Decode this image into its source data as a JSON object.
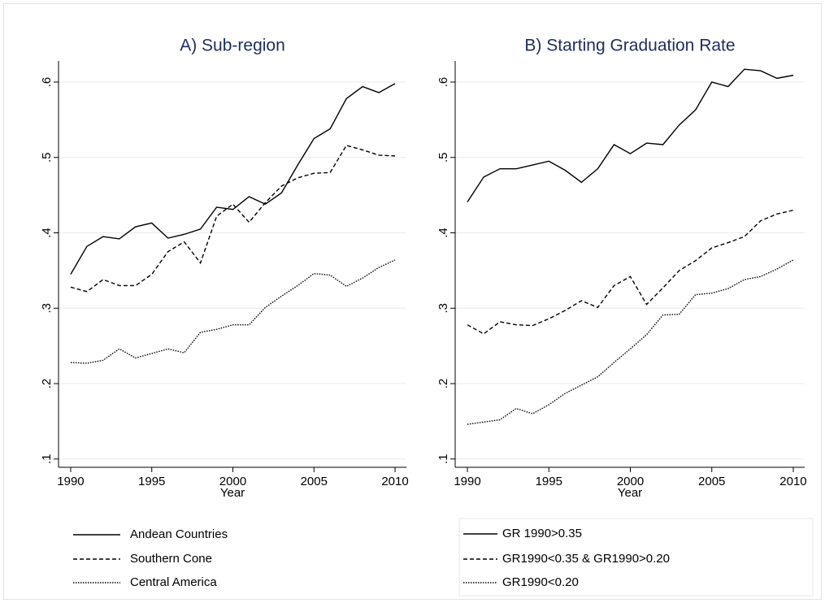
{
  "chart_data": [
    {
      "type": "line",
      "title": "A) Sub-region",
      "x_label": "Year",
      "x": [
        1990,
        1991,
        1992,
        1993,
        1994,
        1995,
        1996,
        1997,
        1998,
        1999,
        2000,
        2001,
        2002,
        2003,
        2004,
        2005,
        2006,
        2007,
        2008,
        2009,
        2010
      ],
      "series": [
        {
          "name": "Andean Countries",
          "color": "#000000",
          "line_style": "solid",
          "values": [
            0.345,
            0.382,
            0.395,
            0.392,
            0.408,
            0.413,
            0.393,
            0.398,
            0.405,
            0.434,
            0.431,
            0.448,
            0.438,
            0.453,
            0.49,
            0.525,
            0.538,
            0.578,
            0.594,
            0.586,
            0.598
          ]
        },
        {
          "name": "Southern Cone",
          "color": "#000000",
          "line_style": "dashed",
          "values": [
            0.328,
            0.322,
            0.338,
            0.33,
            0.33,
            0.345,
            0.375,
            0.388,
            0.36,
            0.422,
            0.438,
            0.414,
            0.44,
            0.462,
            0.473,
            0.479,
            0.48,
            0.516,
            0.51,
            0.503,
            0.502
          ]
        },
        {
          "name": "Central America",
          "color": "#000000",
          "line_style": "dotted",
          "values": [
            0.228,
            0.227,
            0.231,
            0.246,
            0.234,
            0.24,
            0.246,
            0.241,
            0.268,
            0.272,
            0.278,
            0.278,
            0.301,
            0.316,
            0.33,
            0.346,
            0.344,
            0.329,
            0.34,
            0.354,
            0.364
          ]
        }
      ],
      "xlim": [
        1989.25,
        2010.7
      ],
      "xticks": [
        1990,
        1995,
        2000,
        2005,
        2010
      ],
      "ylim": [
        0.089,
        0.628
      ],
      "yticks": [
        {
          "value": 0.1,
          "label": ".1"
        },
        {
          "value": 0.2,
          "label": ".2"
        },
        {
          "value": 0.3,
          "label": ".3"
        },
        {
          "value": 0.4,
          "label": ".4"
        },
        {
          "value": 0.5,
          "label": ".5"
        },
        {
          "value": 0.6,
          "label": ".6"
        }
      ],
      "grid": true,
      "legend": "bottom",
      "legend_box": false
    },
    {
      "type": "line",
      "title": "B) Starting Graduation Rate",
      "x_label": "Year",
      "x": [
        1990,
        1991,
        1992,
        1993,
        1994,
        1995,
        1996,
        1997,
        1998,
        1999,
        2000,
        2001,
        2002,
        2003,
        2004,
        2005,
        2006,
        2007,
        2008,
        2009,
        2010
      ],
      "series": [
        {
          "name": "GR 1990>0.35",
          "color": "#000000",
          "line_style": "solid",
          "values": [
            0.441,
            0.474,
            0.485,
            0.485,
            0.49,
            0.495,
            0.483,
            0.467,
            0.485,
            0.517,
            0.505,
            0.519,
            0.517,
            0.543,
            0.563,
            0.6,
            0.594,
            0.617,
            0.615,
            0.605,
            0.609
          ]
        },
        {
          "name": "GR1990<0.35 & GR1990>0.20",
          "color": "#000000",
          "line_style": "dashed",
          "values": [
            0.278,
            0.266,
            0.282,
            0.278,
            0.277,
            0.286,
            0.297,
            0.31,
            0.301,
            0.33,
            0.342,
            0.305,
            0.327,
            0.35,
            0.363,
            0.38,
            0.387,
            0.395,
            0.416,
            0.425,
            0.43
          ]
        },
        {
          "name": "GR1990<0.20",
          "color": "#000000",
          "line_style": "dotted",
          "values": [
            0.146,
            0.149,
            0.152,
            0.167,
            0.16,
            0.172,
            0.187,
            0.198,
            0.209,
            0.228,
            0.246,
            0.265,
            0.291,
            0.292,
            0.318,
            0.32,
            0.326,
            0.338,
            0.342,
            0.352,
            0.364
          ]
        }
      ],
      "xlim": [
        1989.25,
        2010.7
      ],
      "xticks": [
        1990,
        1995,
        2000,
        2005,
        2010
      ],
      "ylim": [
        0.089,
        0.628
      ],
      "yticks": [
        {
          "value": 0.1,
          "label": ".1"
        },
        {
          "value": 0.2,
          "label": ".2"
        },
        {
          "value": 0.3,
          "label": ".3"
        },
        {
          "value": 0.4,
          "label": ".4"
        },
        {
          "value": 0.5,
          "label": ".5"
        },
        {
          "value": 0.6,
          "label": ".6"
        }
      ],
      "grid": true,
      "legend": "bottom",
      "legend_box": true
    }
  ]
}
